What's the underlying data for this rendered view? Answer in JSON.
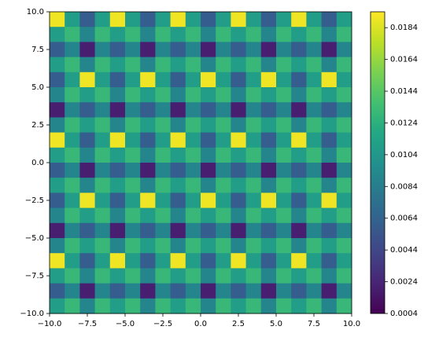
{
  "chart_data": {
    "type": "heatmap",
    "colormap": "viridis",
    "xlim": [
      -10,
      10
    ],
    "ylim": [
      -10,
      10
    ],
    "clim": [
      0.0004,
      0.0194
    ],
    "xticks": [
      {
        "value": -10,
        "label": "−10.0"
      },
      {
        "value": -7.5,
        "label": "−7.5"
      },
      {
        "value": -5,
        "label": "−5.0"
      },
      {
        "value": -2.5,
        "label": "−2.5"
      },
      {
        "value": 0,
        "label": "0.0"
      },
      2.5,
      {
        "value": 5,
        "label": "5.0"
      },
      7.5,
      {
        "value": 10,
        "label": "10.0"
      }
    ],
    "yticks": [
      {
        "value": -10,
        "label": "−10.0"
      },
      {
        "value": -7.5,
        "label": "−7.5"
      },
      {
        "value": -5,
        "label": "−5.0"
      },
      {
        "value": -2.5,
        "label": "−2.5"
      },
      {
        "value": 0,
        "label": "0.0"
      },
      2.5,
      {
        "value": 5,
        "label": "5.0"
      },
      7.5,
      {
        "value": 10,
        "label": "10.0"
      }
    ],
    "cticks": [
      0.0004,
      0.0024,
      0.0044,
      0.0064,
      0.0084,
      0.0104,
      0.0124,
      0.0144,
      0.0164,
      0.0184
    ],
    "z": [
      [
        0.019,
        0.011,
        0.006,
        0.011,
        0.019,
        0.011,
        0.006,
        0.011,
        0.019,
        0.011,
        0.006,
        0.011,
        0.019,
        0.011,
        0.006,
        0.011,
        0.019,
        0.011,
        0.006,
        0.011
      ],
      [
        0.011,
        0.013,
        0.009,
        0.013,
        0.011,
        0.013,
        0.009,
        0.013,
        0.011,
        0.013,
        0.009,
        0.013,
        0.011,
        0.013,
        0.009,
        0.013,
        0.011,
        0.013,
        0.009,
        0.013
      ],
      [
        0.006,
        0.009,
        0.002,
        0.009,
        0.006,
        0.009,
        0.002,
        0.009,
        0.006,
        0.009,
        0.002,
        0.009,
        0.006,
        0.009,
        0.002,
        0.009,
        0.006,
        0.009,
        0.002,
        0.009
      ],
      [
        0.011,
        0.013,
        0.009,
        0.013,
        0.011,
        0.013,
        0.009,
        0.013,
        0.011,
        0.013,
        0.009,
        0.013,
        0.011,
        0.013,
        0.009,
        0.013,
        0.011,
        0.013,
        0.009,
        0.013
      ],
      [
        0.006,
        0.011,
        0.019,
        0.011,
        0.006,
        0.011,
        0.019,
        0.011,
        0.006,
        0.011,
        0.019,
        0.011,
        0.006,
        0.011,
        0.019,
        0.011,
        0.006,
        0.011,
        0.019,
        0.011
      ],
      [
        0.009,
        0.013,
        0.011,
        0.013,
        0.009,
        0.013,
        0.011,
        0.013,
        0.009,
        0.013,
        0.011,
        0.013,
        0.009,
        0.013,
        0.011,
        0.013,
        0.009,
        0.013,
        0.011,
        0.013
      ],
      [
        0.002,
        0.009,
        0.006,
        0.009,
        0.002,
        0.009,
        0.006,
        0.009,
        0.002,
        0.009,
        0.006,
        0.009,
        0.002,
        0.009,
        0.006,
        0.009,
        0.002,
        0.009,
        0.006,
        0.009
      ],
      [
        0.009,
        0.013,
        0.011,
        0.013,
        0.009,
        0.013,
        0.011,
        0.013,
        0.009,
        0.013,
        0.011,
        0.013,
        0.009,
        0.013,
        0.011,
        0.013,
        0.009,
        0.013,
        0.011,
        0.013
      ],
      [
        0.019,
        0.011,
        0.006,
        0.011,
        0.019,
        0.011,
        0.006,
        0.011,
        0.019,
        0.011,
        0.006,
        0.011,
        0.019,
        0.011,
        0.006,
        0.011,
        0.019,
        0.011,
        0.006,
        0.011
      ],
      [
        0.011,
        0.013,
        0.009,
        0.013,
        0.011,
        0.013,
        0.009,
        0.013,
        0.011,
        0.013,
        0.009,
        0.013,
        0.011,
        0.013,
        0.009,
        0.013,
        0.011,
        0.013,
        0.009,
        0.013
      ],
      [
        0.006,
        0.009,
        0.002,
        0.009,
        0.006,
        0.009,
        0.002,
        0.009,
        0.006,
        0.009,
        0.002,
        0.009,
        0.006,
        0.009,
        0.002,
        0.009,
        0.006,
        0.009,
        0.002,
        0.009
      ],
      [
        0.011,
        0.013,
        0.009,
        0.013,
        0.011,
        0.013,
        0.009,
        0.013,
        0.011,
        0.013,
        0.009,
        0.013,
        0.011,
        0.013,
        0.009,
        0.013,
        0.011,
        0.013,
        0.009,
        0.013
      ],
      [
        0.006,
        0.011,
        0.019,
        0.011,
        0.006,
        0.011,
        0.019,
        0.011,
        0.006,
        0.011,
        0.019,
        0.011,
        0.006,
        0.011,
        0.019,
        0.011,
        0.006,
        0.011,
        0.019,
        0.011
      ],
      [
        0.009,
        0.013,
        0.011,
        0.013,
        0.009,
        0.013,
        0.011,
        0.013,
        0.009,
        0.013,
        0.011,
        0.013,
        0.009,
        0.013,
        0.011,
        0.013,
        0.009,
        0.013,
        0.011,
        0.013
      ],
      [
        0.002,
        0.009,
        0.006,
        0.009,
        0.002,
        0.009,
        0.006,
        0.009,
        0.002,
        0.009,
        0.006,
        0.009,
        0.002,
        0.009,
        0.006,
        0.009,
        0.002,
        0.009,
        0.006,
        0.009
      ],
      [
        0.009,
        0.013,
        0.011,
        0.013,
        0.009,
        0.013,
        0.011,
        0.013,
        0.009,
        0.013,
        0.011,
        0.013,
        0.009,
        0.013,
        0.011,
        0.013,
        0.009,
        0.013,
        0.011,
        0.013
      ],
      [
        0.019,
        0.011,
        0.006,
        0.011,
        0.019,
        0.011,
        0.006,
        0.011,
        0.019,
        0.011,
        0.006,
        0.011,
        0.019,
        0.011,
        0.006,
        0.011,
        0.019,
        0.011,
        0.006,
        0.011
      ],
      [
        0.011,
        0.013,
        0.009,
        0.013,
        0.011,
        0.013,
        0.009,
        0.013,
        0.011,
        0.013,
        0.009,
        0.013,
        0.011,
        0.013,
        0.009,
        0.013,
        0.011,
        0.013,
        0.009,
        0.013
      ],
      [
        0.006,
        0.009,
        0.002,
        0.009,
        0.006,
        0.009,
        0.002,
        0.009,
        0.006,
        0.009,
        0.002,
        0.009,
        0.006,
        0.009,
        0.002,
        0.009,
        0.006,
        0.009,
        0.002,
        0.009
      ],
      [
        0.011,
        0.013,
        0.009,
        0.013,
        0.011,
        0.013,
        0.009,
        0.013,
        0.011,
        0.013,
        0.009,
        0.013,
        0.011,
        0.013,
        0.009,
        0.013,
        0.011,
        0.013,
        0.009,
        0.013
      ]
    ]
  }
}
